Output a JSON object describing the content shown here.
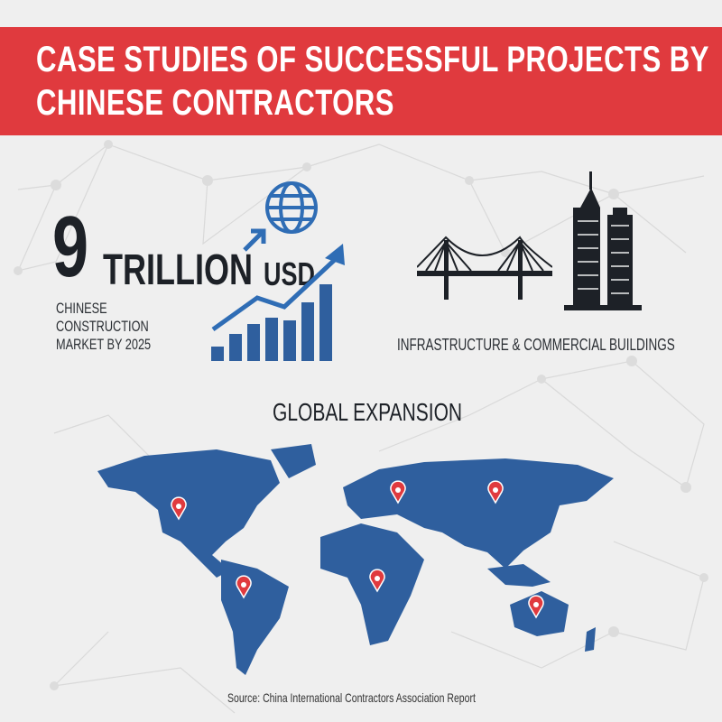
{
  "header": {
    "title_line1": "CASE STUDIES OF SUCCESSFUL PROJECTS BY",
    "title_line2": "CHINESE CONTRACTORS"
  },
  "stat": {
    "number": "9",
    "unit": "TRILLION",
    "currency": "USD",
    "caption_lines": [
      "CHINESE",
      "CONSTRUCTION",
      "MARKET BY 2025"
    ],
    "icons": [
      "globe-icon",
      "growth-bar-chart-icon"
    ]
  },
  "infrastructure": {
    "label": "INFRASTRUCTURE & COMMERCIAL BUILDINGS",
    "icons": [
      "bridge-icon",
      "skyscraper-icon"
    ]
  },
  "expansion": {
    "title": "GLOBAL EXPANSION",
    "pins": [
      "North America",
      "Europe",
      "East Asia",
      "South America",
      "Africa",
      "Australia"
    ]
  },
  "footer": {
    "source": "Source: China International Contractors Association Report"
  },
  "colors": {
    "banner": "#e03a3e",
    "map": "#2f5f9e",
    "accent_blue": "#2f6db5",
    "pin": "#e03a3e",
    "text": "#1d2127"
  }
}
